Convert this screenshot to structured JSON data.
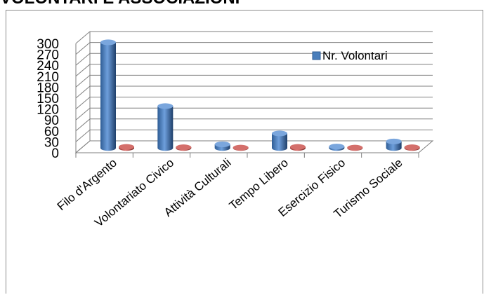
{
  "page": {
    "title": "VOLONTARI E ASSOCIAZIONI"
  },
  "chart_data": {
    "type": "bar",
    "categories": [
      "Filo d'Argento",
      "Volontariato Civico",
      "Attività Culturali",
      "Tempo Libero",
      "Esercizio Fisico",
      "Turismo Sociale"
    ],
    "series": [
      {
        "name": "Nr. Volontari",
        "values": [
          290,
          115,
          10,
          40,
          4,
          18
        ],
        "color": "#4a7ebb"
      },
      {
        "values": [
          3,
          2,
          1,
          3,
          1,
          2
        ],
        "color": "#be4b48"
      }
    ],
    "yticks": [
      0,
      30,
      60,
      90,
      120,
      150,
      180,
      210,
      240,
      270,
      300
    ],
    "ylim": [
      0,
      300
    ],
    "grid": true,
    "legend": "top-right",
    "style": "3d-cylinder"
  }
}
